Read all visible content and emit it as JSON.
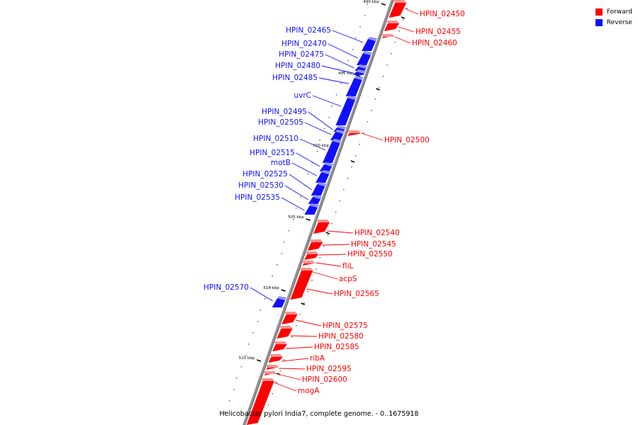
{
  "colors": {
    "forward": "#ff0000",
    "reverse": "#1010ff",
    "axis": "#909090"
  },
  "legend": [
    {
      "label": "Forward",
      "strand": "forward"
    },
    {
      "label": "Reverse",
      "strand": "reverse"
    }
  ],
  "caption": "Helicobacter pylori India7, complete genome. - 0..1675918",
  "ticks": [
    "490 kbp",
    "495 kbp",
    "500 kbp",
    "505 kbp",
    "510 kbp",
    "515 kbp"
  ],
  "genes": [
    {
      "name": "HPIN_02450",
      "strand": "forward"
    },
    {
      "name": "HPIN_02455",
      "strand": "forward"
    },
    {
      "name": "HPIN_02460",
      "strand": "forward"
    },
    {
      "name": "HPIN_02465",
      "strand": "reverse"
    },
    {
      "name": "HPIN_02470",
      "strand": "reverse"
    },
    {
      "name": "HPIN_02475",
      "strand": "reverse"
    },
    {
      "name": "HPIN_02480",
      "strand": "reverse"
    },
    {
      "name": "HPIN_02485",
      "strand": "reverse"
    },
    {
      "name": "uvrC",
      "strand": "reverse"
    },
    {
      "name": "HPIN_02495",
      "strand": "reverse"
    },
    {
      "name": "HPIN_02500",
      "strand": "forward"
    },
    {
      "name": "HPIN_02505",
      "strand": "reverse"
    },
    {
      "name": "HPIN_02510",
      "strand": "reverse"
    },
    {
      "name": "HPIN_02515",
      "strand": "reverse"
    },
    {
      "name": "motB",
      "strand": "reverse"
    },
    {
      "name": "HPIN_02525",
      "strand": "reverse"
    },
    {
      "name": "HPIN_02530",
      "strand": "reverse"
    },
    {
      "name": "HPIN_02535",
      "strand": "reverse"
    },
    {
      "name": "HPIN_02540",
      "strand": "forward"
    },
    {
      "name": "HPIN_02545",
      "strand": "forward"
    },
    {
      "name": "HPIN_02550",
      "strand": "forward"
    },
    {
      "name": "fliL",
      "strand": "forward"
    },
    {
      "name": "acpS",
      "strand": "forward"
    },
    {
      "name": "HPIN_02565",
      "strand": "forward"
    },
    {
      "name": "HPIN_02570",
      "strand": "reverse"
    },
    {
      "name": "HPIN_02575",
      "strand": "forward"
    },
    {
      "name": "HPIN_02580",
      "strand": "forward"
    },
    {
      "name": "HPIN_02585",
      "strand": "forward"
    },
    {
      "name": "ribA",
      "strand": "forward"
    },
    {
      "name": "HPIN_02595",
      "strand": "forward"
    },
    {
      "name": "HPIN_02600",
      "strand": "forward"
    },
    {
      "name": "mogA",
      "strand": "forward"
    }
  ]
}
